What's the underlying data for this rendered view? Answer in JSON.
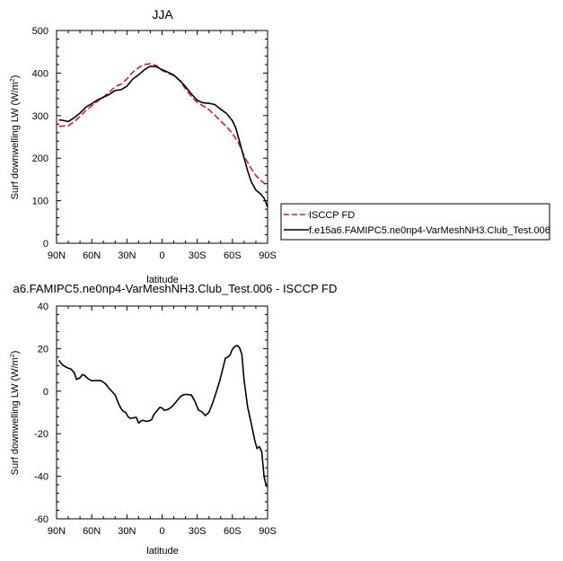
{
  "chart_data": [
    {
      "type": "line",
      "title": "JJA",
      "xlabel": "latitude",
      "ylabel": "Surf downwelling LW (W/m",
      "ylabel_sup": "2",
      "ylabel_end": ")",
      "xlim": [
        90,
        -90
      ],
      "ylim": [
        0,
        500
      ],
      "xticks": [
        {
          "v": 90,
          "label": "90N"
        },
        {
          "v": 60,
          "label": "60N"
        },
        {
          "v": 30,
          "label": "30N"
        },
        {
          "v": 0,
          "label": "0"
        },
        {
          "v": -30,
          "label": "30S"
        },
        {
          "v": -60,
          "label": "60S"
        },
        {
          "v": -90,
          "label": "90S"
        }
      ],
      "yticks": [
        0,
        100,
        200,
        300,
        400,
        500
      ],
      "legend_position": "right",
      "series": [
        {
          "name": "ISCCP FD",
          "color": "#e31a1c",
          "dash": true,
          "x": [
            88,
            80,
            75,
            70,
            65,
            60,
            55,
            50,
            45,
            40,
            35,
            30,
            25,
            20,
            15,
            10,
            5,
            0,
            -5,
            -10,
            -15,
            -20,
            -25,
            -30,
            -35,
            -40,
            -45,
            -50,
            -55,
            -60,
            -65,
            -70,
            -75,
            -80,
            -85,
            -90
          ],
          "y": [
            275,
            276,
            286,
            298,
            312,
            323,
            334,
            344,
            355,
            368,
            374,
            386,
            402,
            413,
            420,
            422,
            418,
            406,
            400,
            394,
            382,
            363,
            345,
            331,
            323,
            314,
            301,
            287,
            274,
            258,
            237,
            205,
            180,
            159,
            146,
            134
          ]
        },
        {
          "name": "f.e15a6.FAMIPC5.ne0np4-VarMeshNH3.Club_Test.006",
          "color": "#000000",
          "dash": false,
          "x": [
            88,
            85,
            80,
            75,
            70,
            65,
            60,
            55,
            50,
            45,
            40,
            35,
            30,
            25,
            20,
            15,
            10,
            5,
            0,
            -5,
            -10,
            -15,
            -20,
            -25,
            -30,
            -35,
            -40,
            -45,
            -50,
            -55,
            -60,
            -63,
            -66,
            -70,
            -73,
            -76,
            -80,
            -84,
            -87,
            -90
          ],
          "y": [
            290,
            289,
            286,
            295,
            306,
            320,
            328,
            337,
            343,
            350,
            359,
            361,
            369,
            386,
            396,
            408,
            416,
            415,
            408,
            402,
            395,
            383,
            368,
            351,
            336,
            330,
            329,
            326,
            315,
            305,
            288,
            270,
            240,
            200,
            170,
            145,
            125,
            116,
            106,
            85
          ]
        }
      ]
    },
    {
      "type": "line",
      "title": "a6.FAMIPC5.ne0np4-VarMeshNH3.Club_Test.006 - ISCCP FD",
      "xlabel": "latitude",
      "ylabel": "Surf downwelling LW (W/m",
      "ylabel_sup": "2",
      "ylabel_end": ")",
      "xlim": [
        90,
        -90
      ],
      "ylim": [
        -60,
        40
      ],
      "xticks": [
        {
          "v": 90,
          "label": "90N"
        },
        {
          "v": 60,
          "label": "60N"
        },
        {
          "v": 30,
          "label": "30N"
        },
        {
          "v": 0,
          "label": "0"
        },
        {
          "v": -30,
          "label": "30S"
        },
        {
          "v": -60,
          "label": "60S"
        },
        {
          "v": -90,
          "label": "90S"
        }
      ],
      "yticks": [
        -60,
        -40,
        -20,
        0,
        20,
        40
      ],
      "series": [
        {
          "color": "#000000",
          "x": [
            88,
            86,
            84,
            81,
            78,
            75,
            73,
            70,
            68,
            66,
            63,
            60,
            57,
            54,
            52,
            50,
            48,
            46,
            44,
            42,
            40,
            37,
            35,
            33,
            31,
            29,
            27,
            24,
            22,
            20,
            18,
            16,
            14,
            12,
            9,
            7,
            4,
            2,
            0,
            -2,
            -5,
            -8,
            -10,
            -12,
            -14,
            -16,
            -18,
            -20,
            -22,
            -25,
            -28,
            -31,
            -34,
            -37,
            -40,
            -43,
            -46,
            -49,
            -52,
            -54,
            -56,
            -58,
            -60,
            -62,
            -64,
            -66,
            -68,
            -70,
            -73,
            -76,
            -79,
            -81,
            -83,
            -85,
            -87,
            -89
          ],
          "y": [
            14.5,
            13,
            12,
            11,
            10.5,
            8.8,
            5.5,
            6.3,
            7.8,
            7.4,
            5.8,
            4.9,
            5,
            5,
            4.9,
            4.2,
            3.3,
            1.8,
            0.6,
            -0.6,
            -1.8,
            -6,
            -8.2,
            -9.5,
            -10,
            -12,
            -12.8,
            -12.5,
            -12.3,
            -15,
            -14,
            -13.7,
            -14.2,
            -14.1,
            -13.5,
            -11,
            -9,
            -7.6,
            -7.9,
            -9,
            -8.6,
            -7.5,
            -6.3,
            -5,
            -3.6,
            -2.4,
            -1.8,
            -1.5,
            -1.6,
            -1.8,
            -4.8,
            -8.8,
            -9.7,
            -11.5,
            -9.9,
            -5.8,
            -0.8,
            4.5,
            11,
            15.5,
            16,
            17,
            19.7,
            21,
            21.5,
            20.5,
            17.5,
            5,
            -7.5,
            -15,
            -23,
            -27,
            -26,
            -28.5,
            -40,
            -45
          ]
        }
      ]
    }
  ]
}
